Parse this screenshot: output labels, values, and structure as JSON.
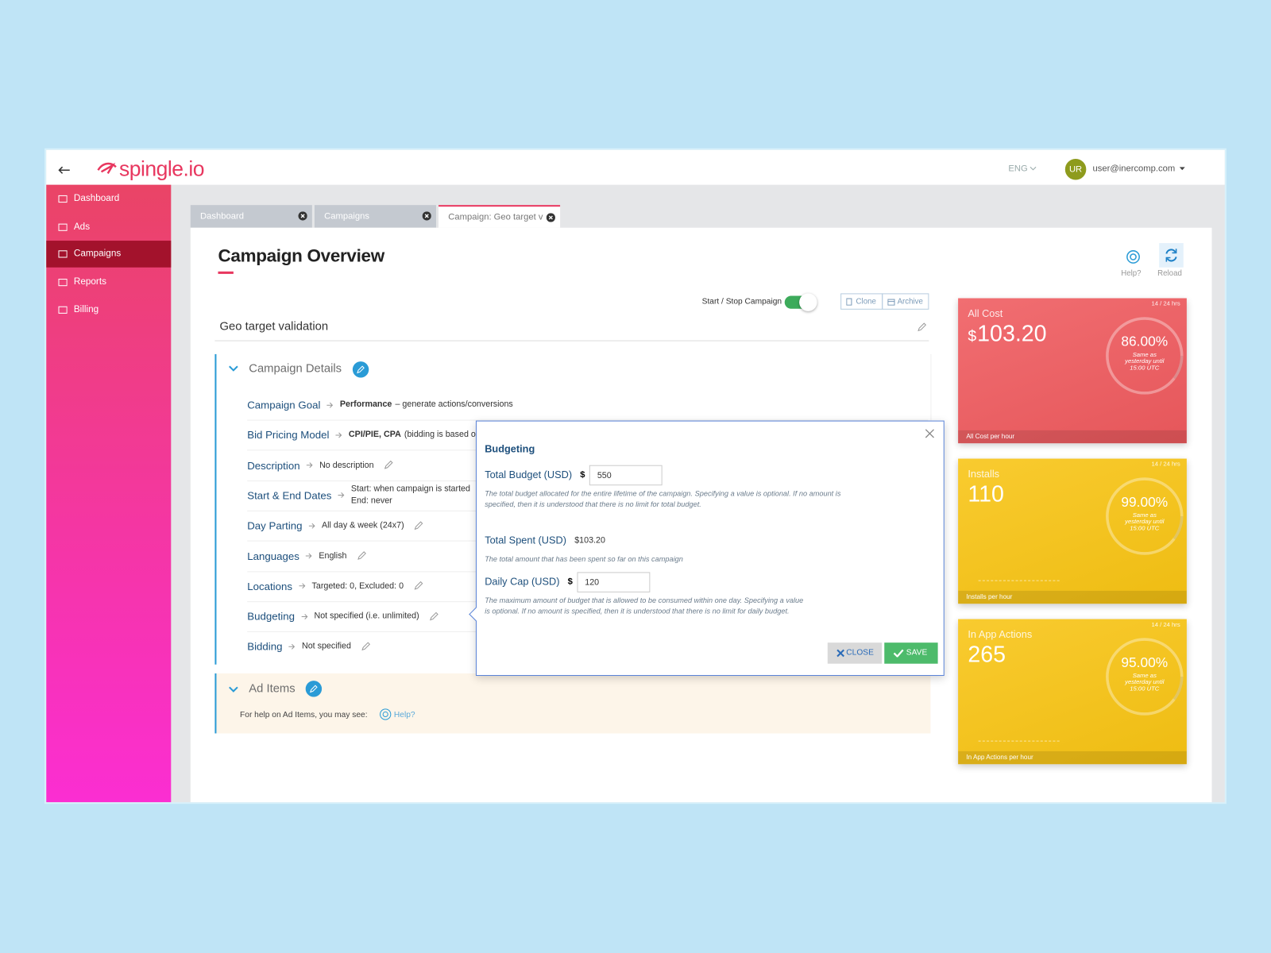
{
  "header": {
    "logo": "spingle.io",
    "language": "ENG",
    "avatar": "UR",
    "user": "user@inercomp.com"
  },
  "sidebar": {
    "items": [
      "Dashboard",
      "Ads",
      "Campaigns",
      "Reports",
      "Billing"
    ]
  },
  "tabs": [
    "Dashboard",
    "Campaigns",
    "Campaign: Geo target v"
  ],
  "page": {
    "title": "Campaign Overview",
    "help": "Help?",
    "reload": "Reload",
    "toggle_label": "Start / Stop Campaign",
    "clone": "Clone",
    "archive": "Archive",
    "campaign_name": "Geo target validation"
  },
  "details": {
    "heading": "Campaign Details",
    "rows": [
      {
        "label": "Campaign Goal",
        "strong": "Performance",
        "values": [
          "– generate actions/conversions"
        ],
        "editable": false
      },
      {
        "label": "Bid Pricing Model",
        "strong": "CPI/PIE, CPA",
        "values": [
          "(bidding is based on"
        ],
        "editable": false
      },
      {
        "label": "Description",
        "values": [
          "No description"
        ],
        "editable": true
      },
      {
        "label": "Start & End Dates",
        "values": [
          "Start: when campaign is started",
          "End: never"
        ],
        "editable": false
      },
      {
        "label": "Day Parting",
        "values": [
          "All day & week (24x7)"
        ],
        "editable": true
      },
      {
        "label": "Languages",
        "values": [
          "English"
        ],
        "editable": true
      },
      {
        "label": "Locations",
        "values": [
          "Targeted: 0, Excluded: 0"
        ],
        "editable": true
      },
      {
        "label": "Budgeting",
        "values": [
          "Not specified (i.e. unlimited)"
        ],
        "editable": true
      },
      {
        "label": "Bidding",
        "values": [
          "Not specified"
        ],
        "editable": true
      }
    ]
  },
  "ad_items": {
    "heading": "Ad Items",
    "text": "For help on Ad Items, you may see:",
    "help": "Help?"
  },
  "popover": {
    "title": "Budgeting",
    "fields": [
      {
        "label": "Total Budget (USD)",
        "currency": "$",
        "input": "550",
        "help": "The total budget allocated for the entire lifetime of the campaign. Specifying a value is optional. If no amount is specified, then it is understood that there is no limit for total budget."
      },
      {
        "label": "Total Spent (USD)",
        "value": "$103.20",
        "help": "The total amount that has been spent so far on this campaign"
      },
      {
        "label": "Daily Cap (USD)",
        "currency": "$",
        "input": "120",
        "help": "The maximum amount of budget that is allowed to be consumed within one day. Specifying a value is optional. If no amount is specified, then it is understood that there is no limit for daily budget."
      }
    ],
    "close": "CLOSE",
    "save": "SAVE"
  },
  "cards": [
    {
      "title": "All Cost",
      "badge": "14 / 24 hrs",
      "currency": "$",
      "value": "103.20",
      "percent": "86.00%",
      "note": "Same as yesterday until 15:00 UTC",
      "footer": "All Cost per hour",
      "color": "#ef5a5e"
    },
    {
      "title": "Installs",
      "badge": "14 / 24 hrs",
      "value": "110",
      "percent": "99.00%",
      "note": "Same as yesterday until 15:00 UTC",
      "footer": "Installs per hour",
      "color": "#f8c413"
    },
    {
      "title": "In App Actions",
      "badge": "14 / 24 hrs",
      "value": "265",
      "percent": "95.00%",
      "note": "Same as yesterday until 15:00 UTC",
      "footer": "In App Actions per hour",
      "color": "#f8c413"
    }
  ]
}
